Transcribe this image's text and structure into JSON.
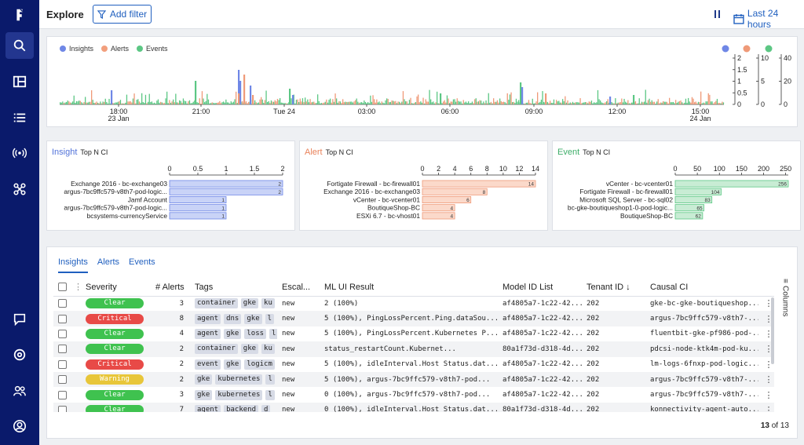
{
  "header": {
    "title": "Explore",
    "add_filter_label": "Add filter",
    "time_range_label": "Last 24 hours"
  },
  "sidebar": {
    "items": [
      {
        "icon": "logo-icon"
      },
      {
        "icon": "search-icon",
        "active": true
      },
      {
        "icon": "dashboard-icon"
      },
      {
        "icon": "list-icon"
      },
      {
        "icon": "broadcast-icon"
      },
      {
        "icon": "integrations-icon"
      },
      {
        "icon": "chat-icon"
      },
      {
        "icon": "settings-icon"
      },
      {
        "icon": "users-icon"
      },
      {
        "icon": "account-icon"
      }
    ]
  },
  "colors": {
    "insights": "#6f87e6",
    "alerts": "#f29f7d",
    "events": "#5cc784",
    "accent": "#1f5fbf",
    "sidebar": "#0a1a6b"
  },
  "timeline": {
    "legend": [
      "Insights",
      "Alerts",
      "Events"
    ],
    "x_ticks": [
      "18:00",
      "21:00",
      "Tue 24",
      "03:00",
      "06:00",
      "09:00",
      "12:00",
      "15:00"
    ],
    "x_subticks": {
      "18:00": "23 Jan",
      "15:00": "24 Jan"
    },
    "insights_axis": [
      "2",
      "1.5",
      "1",
      "0.5",
      "0"
    ],
    "alerts_axis": [
      "10",
      "5",
      "0"
    ],
    "events_axis": [
      "40",
      "20",
      "0"
    ]
  },
  "chart_data": [
    {
      "type": "bar",
      "orientation": "horizontal",
      "title": "Insight",
      "subtitle": "Top N CI",
      "categories": [
        "Exchange 2016 - bc-exchange03",
        "argus-7bc9ffc579-v8th7-pod-logic...",
        "Jamf Account",
        "argus-7bc9ffc579-v8th7-pod-logic...",
        "bcsystems-currencyService"
      ],
      "values": [
        2,
        2,
        1,
        1,
        1
      ],
      "xlim": [
        0,
        2
      ],
      "ticks": [
        "0",
        "0.5",
        "1",
        "1.5",
        "2"
      ]
    },
    {
      "type": "bar",
      "orientation": "horizontal",
      "title": "Alert",
      "subtitle": "Top N CI",
      "categories": [
        "Fortigate Firewall - bc-firewall01",
        "Exchange 2016 - bc-exchange03",
        "vCenter - bc-vcenter01",
        "BoutiqueShop-BC",
        "ESXi 6.7 - bc-vhost01"
      ],
      "values": [
        14,
        8,
        6,
        4,
        4
      ],
      "xlim": [
        0,
        14
      ],
      "ticks": [
        "0",
        "2",
        "4",
        "6",
        "8",
        "10",
        "12",
        "14"
      ]
    },
    {
      "type": "bar",
      "orientation": "horizontal",
      "title": "Event",
      "subtitle": "Top N CI",
      "categories": [
        "vCenter - bc-vcenter01",
        "Fortigate Firewall - bc-firewall01",
        "Microsoft SQL Server - bc-sql02",
        "bc-gke-boutiqueshop1-0-pod-logic...",
        "BoutiqueShop-BC"
      ],
      "values": [
        256,
        104,
        83,
        65,
        62
      ],
      "xlim": [
        0,
        256
      ],
      "ticks": [
        "0",
        "50",
        "100",
        "150",
        "200",
        "250"
      ]
    }
  ],
  "table": {
    "tabs": [
      "Insights",
      "Alerts",
      "Events"
    ],
    "columns": [
      "Severity",
      "# Alerts",
      "Tags",
      "Escal...",
      "ML UI Result",
      "Model ID List",
      "Tenant ID",
      "Causal CI"
    ],
    "columns_label": "Columns",
    "rows": [
      {
        "severity": "Clear",
        "alerts": "3",
        "tags": [
          "container",
          "gke",
          "ku"
        ],
        "escal": "new",
        "ml": "2 (100%)",
        "model": "af4805a7-1c22-42...",
        "tenant": "202",
        "ci": "gke-bc-gke-boutiqueshop..."
      },
      {
        "severity": "Critical",
        "alerts": "8",
        "tags": [
          "agent",
          "dns",
          "gke",
          "l"
        ],
        "escal": "new",
        "ml": "5 (100%), PingLossPercent.Ping.dataSou...",
        "model": "af4805a7-1c22-42...",
        "tenant": "202",
        "ci": "argus-7bc9ffc579-v8th7-..."
      },
      {
        "severity": "Clear",
        "alerts": "4",
        "tags": [
          "agent",
          "gke",
          "loss",
          "l"
        ],
        "escal": "new",
        "ml": "5 (100%), PingLossPercent.Kubernetes P...",
        "model": "af4805a7-1c22-42...",
        "tenant": "202",
        "ci": "fluentbit-gke-pf986-pod-..."
      },
      {
        "severity": "Clear",
        "alerts": "2",
        "tags": [
          "container",
          "gke",
          "ku"
        ],
        "escal": "new",
        "ml": "status_restartCount.Kubernet...",
        "model": "80a1f73d-d318-4d...",
        "tenant": "202",
        "ci": "pdcsi-node-ktk4m-pod-ku..."
      },
      {
        "severity": "Critical",
        "alerts": "2",
        "tags": [
          "event",
          "gke",
          "logicm"
        ],
        "escal": "new",
        "ml": "5 (100%), idleInterval.Host Status.dat...",
        "model": "af4805a7-1c22-42...",
        "tenant": "202",
        "ci": "lm-logs-6fnxp-pod-logic..."
      },
      {
        "severity": "Warning",
        "alerts": "2",
        "tags": [
          "gke",
          "kubernetes",
          "l"
        ],
        "escal": "new",
        "ml": "5 (100%), argus-7bc9ffc579-v8th7-pod...",
        "model": "af4805a7-1c22-42...",
        "tenant": "202",
        "ci": "argus-7bc9ffc579-v8th7-..."
      },
      {
        "severity": "Clear",
        "alerts": "3",
        "tags": [
          "gke",
          "kubernetes",
          "l"
        ],
        "escal": "new",
        "ml": "0 (100%), argus-7bc9ffc579-v8th7-pod...",
        "model": "af4805a7-1c22-42...",
        "tenant": "202",
        "ci": "argus-7bc9ffc579-v8th7-..."
      },
      {
        "severity": "Clear",
        "alerts": "7",
        "tags": [
          "agent",
          "backend",
          "d"
        ],
        "escal": "new",
        "ml": "0 (100%), idleInterval.Host Status.dat...",
        "model": "80a1f73d-d318-4d...",
        "tenant": "202",
        "ci": "konnectivity-agent-auto..."
      }
    ],
    "pager_current": "13",
    "pager_of": "of 13"
  }
}
